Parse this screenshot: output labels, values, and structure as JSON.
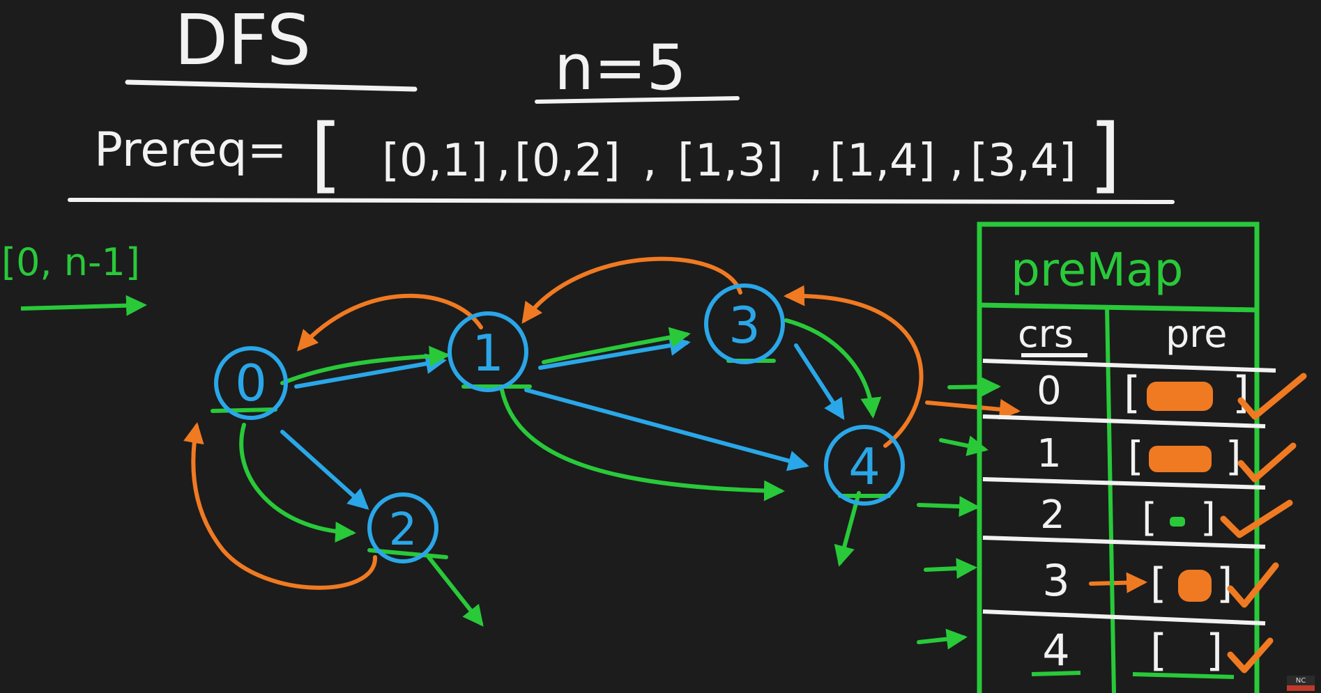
{
  "title": "DFS",
  "n_label": "n=5",
  "prereq": {
    "label": "Prereq=",
    "open": "[",
    "close": "]",
    "pairs": [
      "[0,1]",
      "[0,2]",
      "[1,3]",
      "[1,4]",
      "[3,4]"
    ],
    "separator": ","
  },
  "range_note": "[0, n-1]",
  "graph": {
    "nodes": [
      "0",
      "1",
      "2",
      "3",
      "4"
    ],
    "edges": [
      {
        "from": "0",
        "to": "1"
      },
      {
        "from": "0",
        "to": "2"
      },
      {
        "from": "1",
        "to": "3"
      },
      {
        "from": "1",
        "to": "4"
      },
      {
        "from": "3",
        "to": "4"
      }
    ]
  },
  "premap": {
    "title": "preMap",
    "columns": [
      "crs",
      "pre"
    ],
    "rows": [
      {
        "crs": "0",
        "pre_open": "[",
        "pre_close": "]"
      },
      {
        "crs": "1",
        "pre_open": "[",
        "pre_close": "]"
      },
      {
        "crs": "2",
        "pre_open": "[",
        "pre_close": "]"
      },
      {
        "crs": "3",
        "pre_open": "[",
        "pre_close": "]"
      },
      {
        "crs": "4",
        "pre_open": "[",
        "pre_close": "]"
      }
    ]
  },
  "watermark": "NC",
  "colors": {
    "background": "#1c1c1c",
    "white": "#f2f2f2",
    "green": "#29c93a",
    "blue": "#2aa7e8",
    "orange": "#f07a22"
  }
}
